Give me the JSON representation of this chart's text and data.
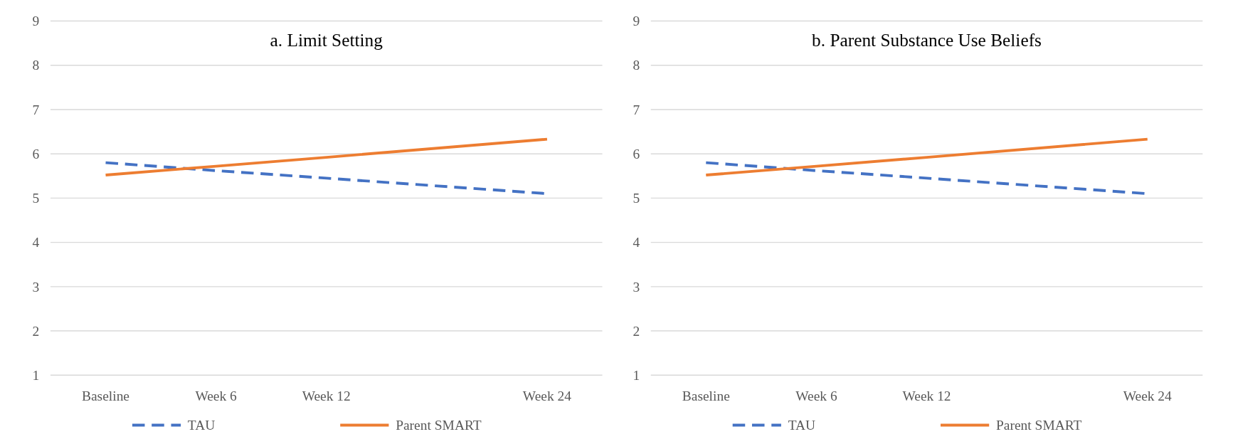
{
  "chart_data": [
    {
      "type": "line",
      "title": "a. Limit Setting",
      "categories": [
        "Baseline",
        "Week 6",
        "Week 12",
        null,
        "Week 24"
      ],
      "ylim": [
        1,
        9
      ],
      "yticks": [
        1,
        2,
        3,
        4,
        5,
        6,
        7,
        8,
        9
      ],
      "grid": "y",
      "legend": "bottom",
      "marker": "none",
      "series": [
        {
          "name": "TAU",
          "color": "#4472c4",
          "line_style": "dashed",
          "values": [
            5.8,
            5.62,
            5.45,
            null,
            5.1
          ]
        },
        {
          "name": "Parent SMART",
          "color": "#ed7d31",
          "line_style": "solid",
          "values": [
            5.52,
            5.72,
            5.92,
            null,
            6.33
          ]
        }
      ]
    },
    {
      "type": "line",
      "title": "b. Parent Substance Use Beliefs",
      "categories": [
        "Baseline",
        "Week 6",
        "Week 12",
        null,
        "Week 24"
      ],
      "ylim": [
        1,
        9
      ],
      "yticks": [
        1,
        2,
        3,
        4,
        5,
        6,
        7,
        8,
        9
      ],
      "grid": "y",
      "legend": "bottom",
      "marker": "none",
      "series": [
        {
          "name": "TAU",
          "color": "#4472c4",
          "line_style": "dashed",
          "values": [
            5.8,
            5.62,
            5.45,
            null,
            5.1
          ]
        },
        {
          "name": "Parent SMART",
          "color": "#ed7d31",
          "line_style": "solid",
          "values": [
            5.52,
            5.72,
            5.92,
            null,
            6.33
          ]
        }
      ]
    }
  ]
}
